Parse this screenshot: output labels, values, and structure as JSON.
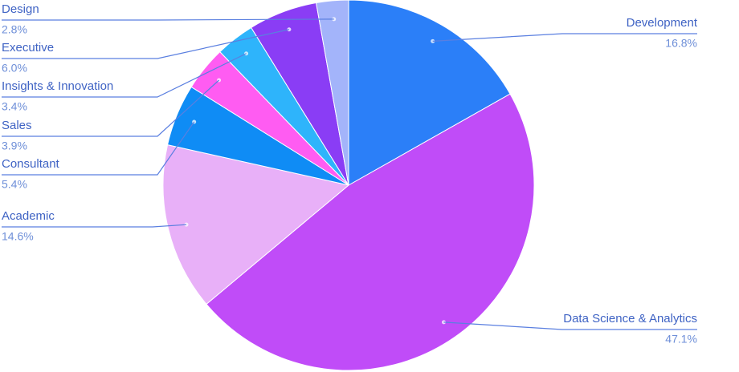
{
  "chart_data": {
    "type": "pie",
    "start_angle_deg": 0,
    "direction": "clockwise",
    "slices": [
      {
        "label": "Development",
        "value": 16.8,
        "value_label": "16.8%",
        "color": "#2b7ff8"
      },
      {
        "label": "Data Science & Analytics",
        "value": 47.1,
        "value_label": "47.1%",
        "color": "#c04cf8"
      },
      {
        "label": "Academic",
        "value": 14.6,
        "value_label": "14.6%",
        "color": "#e8b0f8"
      },
      {
        "label": "Consultant",
        "value": 5.4,
        "value_label": "5.4%",
        "color": "#0f8cf5"
      },
      {
        "label": "Sales",
        "value": 3.9,
        "value_label": "3.9%",
        "color": "#ff5cf2"
      },
      {
        "label": "Insights & Innovation",
        "value": 3.4,
        "value_label": "3.4%",
        "color": "#2eb4fb"
      },
      {
        "label": "Executive",
        "value": 6.0,
        "value_label": "6.0%",
        "color": "#8a3df5"
      },
      {
        "label": "Design",
        "value": 2.8,
        "value_label": "2.8%",
        "color": "#a3b4fa"
      }
    ],
    "label_color": "#3f63c4",
    "percent_color": "#6e8fd8",
    "leader_color": "#5a7fe0"
  }
}
